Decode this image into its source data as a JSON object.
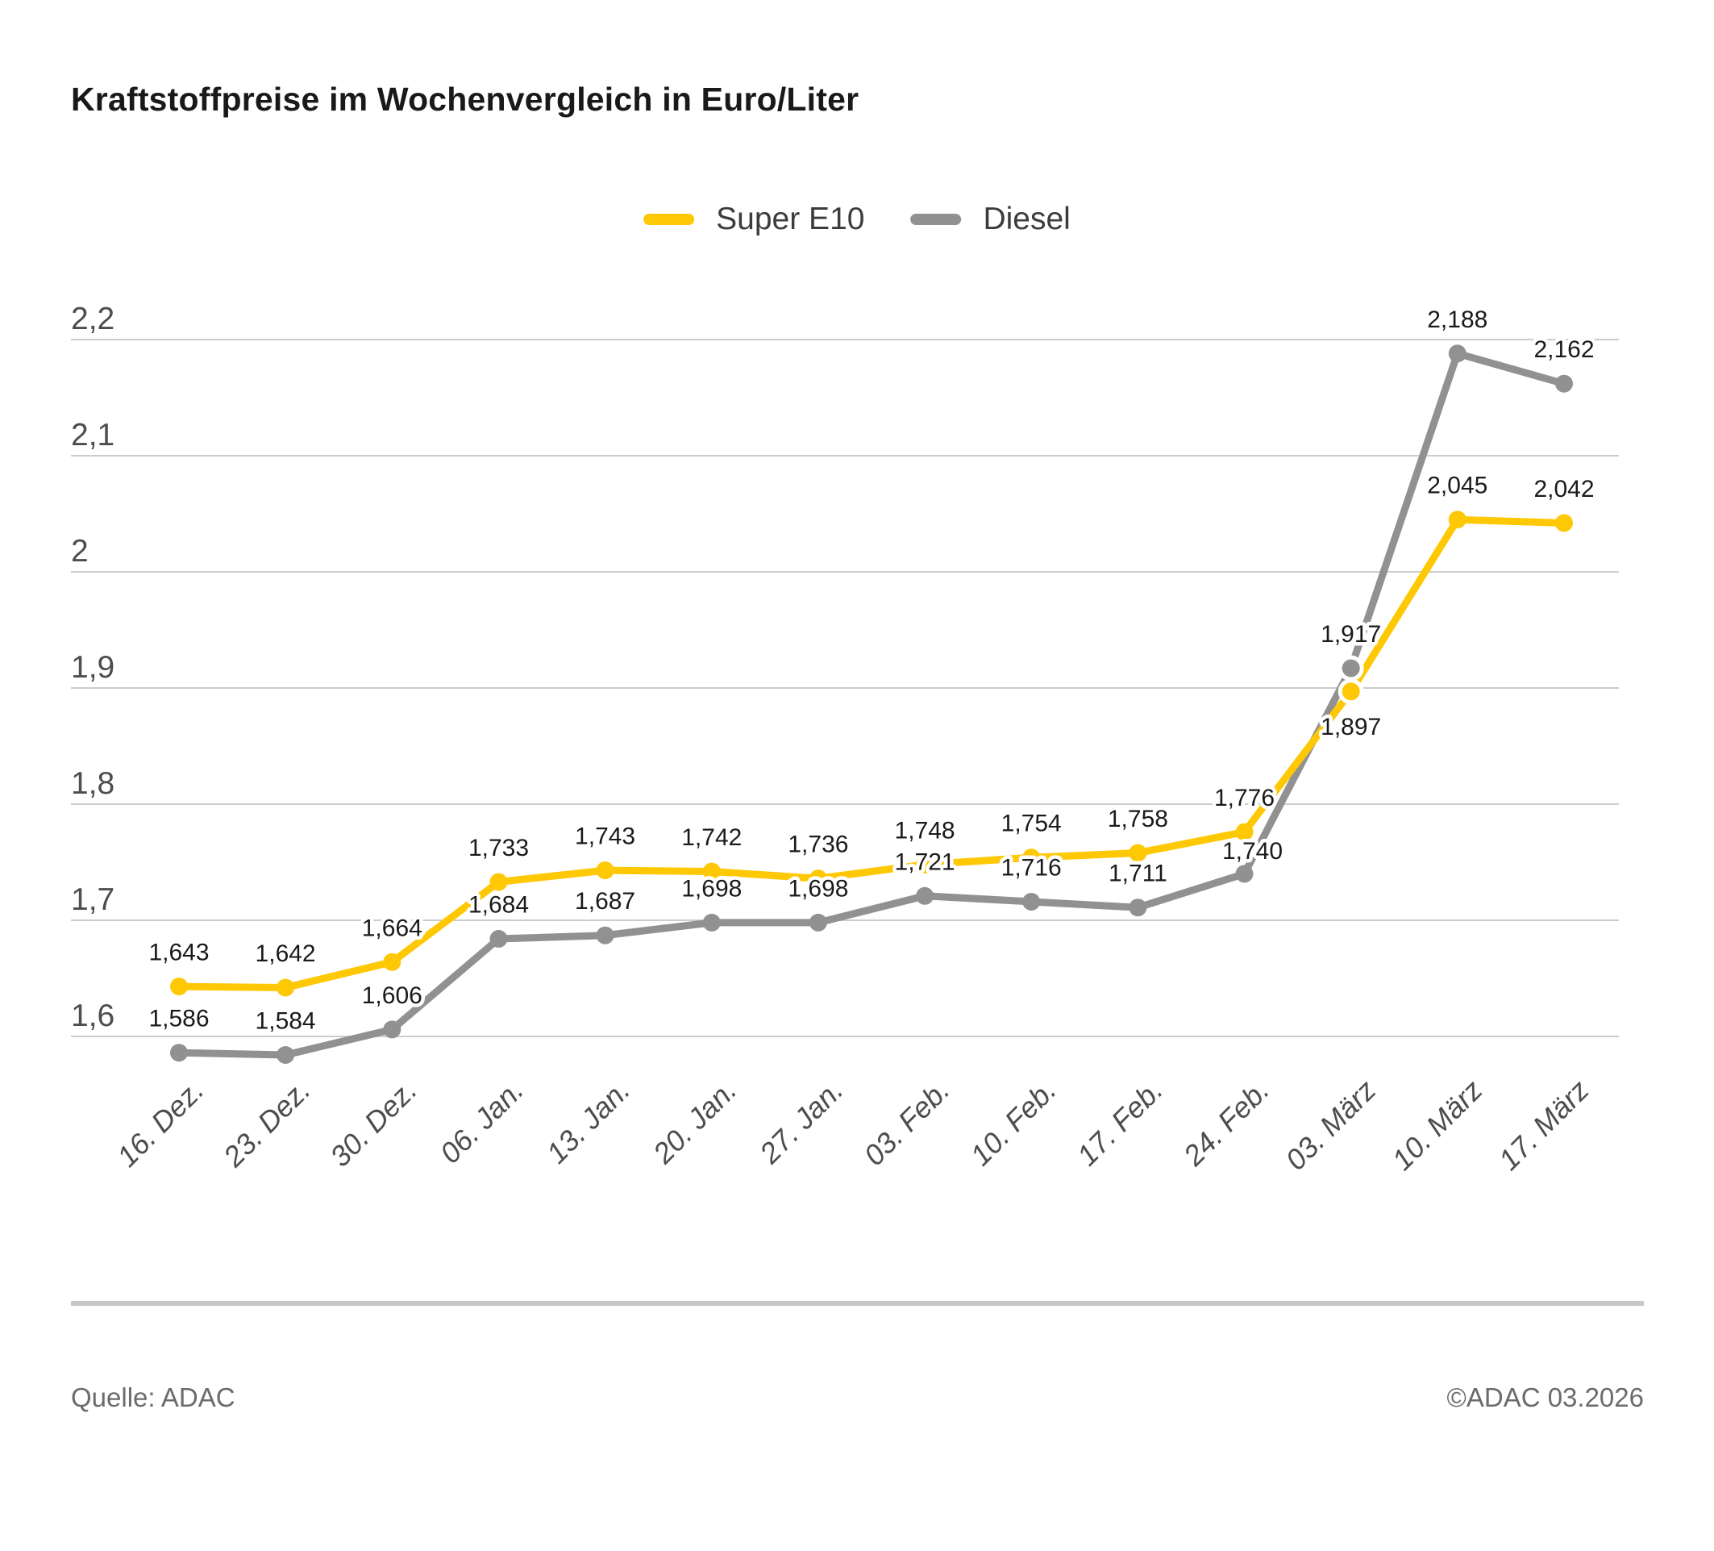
{
  "title": "Kraftstoffpreise im Wochenvergleich in Euro/Liter",
  "legend": {
    "items": [
      {
        "label": "Super E10",
        "color": "#FFC805"
      },
      {
        "label": "Diesel",
        "color": "#919191"
      }
    ]
  },
  "footer": {
    "source": "Quelle: ADAC",
    "copyright": "©ADAC 03.2026"
  },
  "colors": {
    "super_e10": "#FFC805",
    "diesel": "#919191",
    "gridline": "#cccccc",
    "axis_text": "#4d4d4d",
    "data_label": "#1a1a1a"
  },
  "chart_data": {
    "type": "line",
    "title": "Kraftstoffpreise im Wochenvergleich in Euro/Liter",
    "xlabel": "",
    "ylabel": "Euro/Liter",
    "grid": "horizontal",
    "legend_position": "top-center",
    "categories": [
      "16. Dez.",
      "23. Dez.",
      "30. Dez.",
      "06. Jan.",
      "13. Jan.",
      "20. Jan.",
      "27. Jan.",
      "03. Feb.",
      "10. Feb.",
      "17. Feb.",
      "24. Feb.",
      "03. März",
      "10. März",
      "17. März"
    ],
    "yticks": [
      {
        "value": 2.2,
        "label": "2,2"
      },
      {
        "value": 2.1,
        "label": "2,1"
      },
      {
        "value": 2.0,
        "label": "2"
      },
      {
        "value": 1.9,
        "label": "1,9"
      },
      {
        "value": 1.8,
        "label": "1,8"
      },
      {
        "value": 1.7,
        "label": "1,7"
      },
      {
        "value": 1.6,
        "label": "1,6"
      }
    ],
    "ylim": [
      1.55,
      2.25
    ],
    "series": [
      {
        "name": "Super E10",
        "color": "#FFC805",
        "values": [
          1.643,
          1.642,
          1.664,
          1.733,
          1.743,
          1.742,
          1.736,
          1.748,
          1.754,
          1.758,
          1.776,
          1.897,
          2.045,
          2.042
        ],
        "labels": [
          "1,643",
          "1,642",
          "1,664",
          "1,733",
          "1,743",
          "1,742",
          "1,736",
          "1,748",
          "1,754",
          "1,758",
          "1,776",
          "1,897",
          "2,045",
          "2,042"
        ],
        "label_side": {
          "11": "below"
        },
        "label_dx": {},
        "label_dy": {},
        "halo_points": [
          11
        ]
      },
      {
        "name": "Diesel",
        "color": "#919191",
        "values": [
          1.586,
          1.584,
          1.606,
          1.684,
          1.687,
          1.698,
          1.698,
          1.721,
          1.716,
          1.711,
          1.74,
          1.917,
          2.188,
          2.162
        ],
        "labels": [
          "1,586",
          "1,584",
          "1,606",
          "1,684",
          "1,687",
          "1,698",
          "1,698",
          "1,721",
          "1,716",
          "1,711",
          "1,740",
          "1,917",
          "2,188",
          "2,162"
        ],
        "label_side": {},
        "label_dx": {
          "10": 10
        },
        "label_dy": {
          "10": 14
        },
        "halo_points": [
          11
        ]
      }
    ]
  }
}
